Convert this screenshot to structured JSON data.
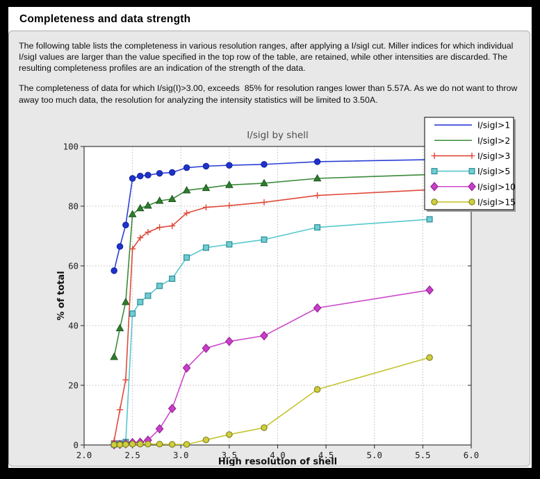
{
  "page": {
    "title": "Completeness and data strength",
    "paragraphs": [
      "The following table lists the completeness in various resolution ranges, after applying a I/sigI cut. Miller indices for which individual I/sigI values are larger than the value specified in the top row of the table, are retained, while other intensities are discarded. The resulting completeness profiles are an indication of the strength of the data.",
      "The completeness of data for which I/sig(I)>3.00, exceeds  85% for resolution ranges lower than 5.57A. As we do not want to throw away too much data, the resolution for analyzing the intensity statistics will be limited to 3.50A."
    ]
  },
  "chart_data": {
    "type": "line",
    "title": "I/sigI by shell",
    "xlabel": "High resolution of shell",
    "ylabel": "% of total",
    "xlim": [
      2.0,
      6.0
    ],
    "ylim": [
      0,
      100
    ],
    "xticks": [
      2.0,
      2.5,
      3.0,
      3.5,
      4.0,
      4.5,
      5.0,
      5.5,
      6.0
    ],
    "yticks": [
      0,
      20,
      40,
      60,
      80,
      100
    ],
    "grid": true,
    "grid_color": "#bcbcbc",
    "legend_position": "top-right",
    "x": [
      2.31,
      2.37,
      2.43,
      2.5,
      2.58,
      2.66,
      2.78,
      2.91,
      3.06,
      3.26,
      3.5,
      3.86,
      4.41,
      5.57
    ],
    "series": [
      {
        "name": "I/sigI>1",
        "marker": "circle",
        "legend_marker": false,
        "line": "#2a3fd4",
        "fill": "#1f33cc",
        "edge": "#14229e",
        "values": [
          58.4,
          66.5,
          73.7,
          89.3,
          90.1,
          90.4,
          91.0,
          91.3,
          92.9,
          93.4,
          93.7,
          94.0,
          94.9,
          95.6
        ]
      },
      {
        "name": "I/sigI>2",
        "marker": "triangle",
        "legend_marker": false,
        "line": "#3a8a3a",
        "fill": "#2e7d2e",
        "edge": "#1c541c",
        "values": [
          29.5,
          39.1,
          47.9,
          77.3,
          79.3,
          80.2,
          81.8,
          82.4,
          85.3,
          86.1,
          87.1,
          87.7,
          89.3,
          90.6
        ]
      },
      {
        "name": "I/sigI>3",
        "marker": "plus",
        "legend_marker": true,
        "line": "#e0483a",
        "fill": "#e0483a",
        "edge": "#e0483a",
        "values": [
          1.4,
          11.8,
          21.8,
          65.7,
          69.4,
          71.3,
          72.9,
          73.4,
          77.7,
          79.6,
          80.2,
          81.3,
          83.6,
          85.5
        ]
      },
      {
        "name": "I/sigI>5",
        "marker": "square",
        "legend_marker": true,
        "line": "#56c8ce",
        "fill": "#6fcdd3",
        "edge": "#2b8c93",
        "values": [
          0.2,
          0.5,
          1.0,
          44.0,
          47.9,
          50.0,
          53.3,
          55.7,
          62.8,
          66.1,
          67.2,
          68.8,
          72.9,
          75.6
        ]
      },
      {
        "name": "I/sigI>10",
        "marker": "diamond",
        "legend_marker": true,
        "line": "#cc49cc",
        "fill": "#c93ec9",
        "edge": "#8c1d8c",
        "values": [
          0.1,
          0.2,
          0.4,
          0.8,
          0.9,
          1.6,
          5.4,
          12.2,
          25.8,
          32.4,
          34.7,
          36.6,
          45.9,
          51.9
        ]
      },
      {
        "name": "I/sigI>15",
        "marker": "circle",
        "legend_marker": true,
        "line": "#c4c431",
        "fill": "#cfcf3d",
        "edge": "#7d7d1c",
        "values": [
          0.1,
          0.1,
          0.2,
          0.3,
          0.3,
          0.3,
          0.3,
          0.2,
          0.2,
          1.7,
          3.5,
          5.8,
          18.6,
          29.3
        ]
      }
    ]
  }
}
